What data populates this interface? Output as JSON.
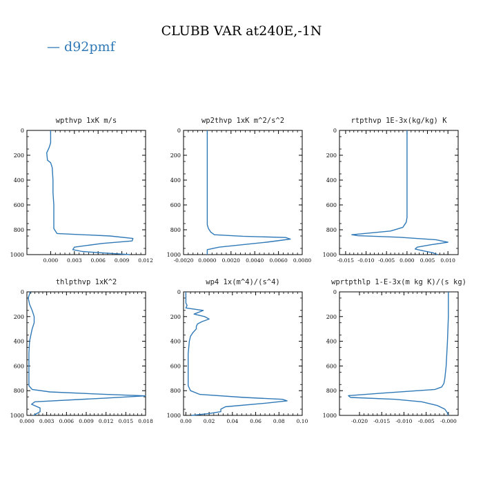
{
  "figure": {
    "title": "CLUBB VAR at240E,-1N",
    "legend": [
      {
        "label": "d92pmf",
        "color": "#2e78b7"
      }
    ],
    "line_color": "#2e78b7"
  },
  "chart_data": [
    {
      "type": "line",
      "title": "wpthvp  1xK m/s",
      "xlim": [
        -0.003,
        0.012
      ],
      "xticks": [
        0.0,
        0.003,
        0.006,
        0.009,
        0.012
      ],
      "xtick_labels": [
        "0.000",
        "0.003",
        "0.006",
        "0.009",
        "0.012"
      ],
      "ylim": [
        1000,
        0
      ],
      "yticks": [
        0,
        200,
        400,
        600,
        800,
        1000
      ],
      "series": [
        {
          "x": [
            0.0,
            0.0,
            -0.0002,
            -0.0005,
            -0.0004,
            0.0,
            0.0002,
            0.0003,
            0.0003,
            0.0004,
            0.0004,
            0.0004,
            0.0004,
            0.0008,
            0.0075,
            0.0104,
            0.0103,
            0.0065,
            0.003,
            0.0028,
            0.004,
            0.0075,
            0.01
          ],
          "y": [
            0,
            100,
            140,
            180,
            240,
            260,
            300,
            400,
            500,
            600,
            700,
            750,
            790,
            830,
            850,
            870,
            890,
            910,
            940,
            960,
            975,
            990,
            1000
          ]
        }
      ]
    },
    {
      "type": "line",
      "title": "wp2thvp  1xK m^2/s^2",
      "xlim": [
        -0.002,
        0.008
      ],
      "xticks": [
        -0.002,
        0.0,
        0.002,
        0.004,
        0.006,
        0.008
      ],
      "xtick_labels": [
        "-0.0020",
        "0.0000",
        "0.0020",
        "0.0040",
        "0.0060",
        "0.0080"
      ],
      "ylim": [
        1000,
        0
      ],
      "yticks": [
        0,
        200,
        400,
        600,
        800,
        1000
      ],
      "series": [
        {
          "x": [
            0.0,
            0.0,
            0.0,
            0.0,
            0.0,
            0.0,
            0.0001,
            0.0003,
            0.0006,
            0.003,
            0.0066,
            0.007,
            0.005,
            0.001,
            0.0,
            0.0,
            0.0
          ],
          "y": [
            0,
            200,
            400,
            600,
            700,
            760,
            790,
            820,
            840,
            852,
            862,
            875,
            900,
            940,
            960,
            985,
            1000
          ]
        }
      ]
    },
    {
      "type": "line",
      "title": "rtpthvp  1E-3x(kg/kg) K",
      "xlim": [
        -0.0165,
        0.0125
      ],
      "xticks": [
        -0.015,
        -0.01,
        -0.005,
        0.0,
        0.005,
        0.01
      ],
      "xtick_labels": [
        "-0.015",
        "-0.010",
        "-0.005",
        "0.000",
        "0.005",
        "0.010"
      ],
      "ylim": [
        1000,
        0
      ],
      "yticks": [
        0,
        200,
        400,
        600,
        800,
        1000
      ],
      "series": [
        {
          "x": [
            0.0,
            0.0,
            0.0,
            0.0,
            0.0,
            -0.0002,
            -0.001,
            -0.004,
            -0.0135,
            -0.012,
            -0.002,
            0.007,
            0.01,
            0.006,
            0.0025,
            0.002,
            0.004,
            0.0063,
            0.0075
          ],
          "y": [
            0,
            200,
            400,
            600,
            700,
            740,
            780,
            810,
            840,
            848,
            860,
            880,
            900,
            920,
            940,
            955,
            970,
            985,
            1000
          ]
        }
      ]
    },
    {
      "type": "line",
      "title": "thlpthvp  1xK^2",
      "xlim": [
        0.0,
        0.018
      ],
      "xticks": [
        0.0,
        0.003,
        0.006,
        0.009,
        0.012,
        0.015,
        0.018
      ],
      "xtick_labels": [
        "0.000",
        "0.003",
        "0.006",
        "0.009",
        "0.012",
        "0.015",
        "0.018"
      ],
      "ylim": [
        1000,
        0
      ],
      "yticks": [
        0,
        200,
        400,
        600,
        800,
        1000
      ],
      "series": [
        {
          "x": [
            0.0005,
            0.0002,
            0.0004,
            0.0008,
            0.0011,
            0.0011,
            0.0008,
            0.0004,
            0.0003,
            0.0003,
            0.0003,
            0.0003,
            0.0003,
            0.0008,
            0.0035,
            0.012,
            0.018,
            0.012,
            0.0012,
            0.0007,
            0.002,
            0.002,
            0.001
          ],
          "y": [
            0,
            50,
            100,
            150,
            200,
            250,
            300,
            400,
            500,
            600,
            680,
            730,
            760,
            790,
            810,
            830,
            842,
            860,
            890,
            910,
            940,
            970,
            1000
          ]
        }
      ]
    },
    {
      "type": "line",
      "title": "wp4  1x(m^4)/(s^4)",
      "xlim": [
        -0.002,
        0.1
      ],
      "xticks": [
        0.0,
        0.02,
        0.04,
        0.06,
        0.08,
        0.1
      ],
      "xtick_labels": [
        "0.00",
        "0.02",
        "0.04",
        "0.06",
        "0.08",
        "0.10"
      ],
      "ylim": [
        1000,
        0
      ],
      "yticks": [
        0,
        200,
        400,
        600,
        800,
        1000
      ],
      "series": [
        {
          "x": [
            0.0,
            0.0,
            0.001,
            0.0,
            0.015,
            0.007,
            0.016,
            0.02,
            0.014,
            0.01,
            0.009,
            0.009,
            0.006,
            0.004,
            0.003,
            0.002,
            0.002,
            0.002,
            0.002,
            0.004,
            0.012,
            0.05,
            0.083,
            0.087,
            0.07,
            0.034,
            0.03,
            0.03,
            0.02,
            0.005
          ],
          "y": [
            0,
            90,
            110,
            130,
            150,
            180,
            200,
            220,
            240,
            260,
            280,
            300,
            330,
            360,
            400,
            500,
            600,
            700,
            760,
            800,
            830,
            855,
            870,
            882,
            900,
            930,
            950,
            970,
            985,
            1000
          ]
        }
      ]
    },
    {
      "type": "line",
      "title": "wprtpthlp  1-E-3x(m kg K)/(s kg)",
      "xlim": [
        -0.0245,
        0.0022
      ],
      "xticks": [
        -0.02,
        -0.015,
        -0.01,
        -0.005,
        0.0
      ],
      "xtick_labels": [
        "-0.020",
        "-0.015",
        "-0.010",
        "-0.005",
        "-0.000"
      ],
      "ylim": [
        1000,
        0
      ],
      "yticks": [
        0,
        200,
        400,
        600,
        800,
        1000
      ],
      "series": [
        {
          "x": [
            0.0,
            0.0,
            -0.0002,
            -0.0005,
            -0.0008,
            -0.001,
            -0.0015,
            -0.003,
            -0.015,
            -0.0225,
            -0.022,
            -0.012,
            -0.006,
            -0.0025,
            -0.0008,
            -0.0003,
            0.0
          ],
          "y": [
            0,
            200,
            400,
            600,
            700,
            740,
            770,
            790,
            820,
            840,
            855,
            870,
            890,
            920,
            950,
            975,
            1000
          ]
        }
      ]
    }
  ]
}
